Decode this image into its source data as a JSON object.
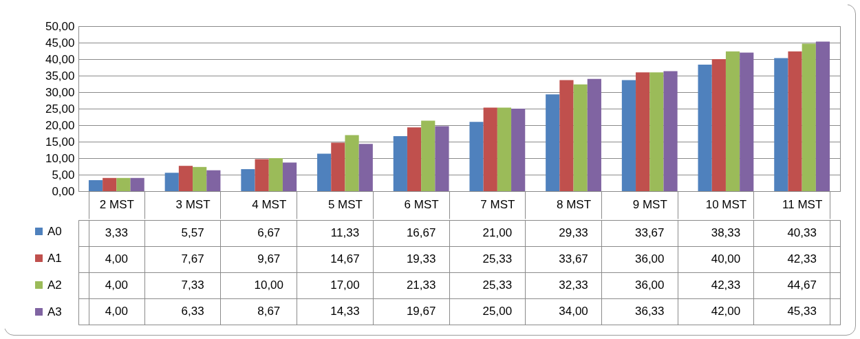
{
  "chart_data": {
    "type": "bar",
    "categories": [
      "2 MST",
      "3 MST",
      "4 MST",
      "5 MST",
      "6 MST",
      "7 MST",
      "8 MST",
      "9 MST",
      "10 MST",
      "11 MST"
    ],
    "series": [
      {
        "name": "A0",
        "color": "#4f81bd",
        "values": [
          3.33,
          5.57,
          6.67,
          11.33,
          16.67,
          21.0,
          29.33,
          33.67,
          38.33,
          40.33
        ],
        "value_labels": [
          "3,33",
          "5,57",
          "6,67",
          "11,33",
          "16,67",
          "21,00",
          "29,33",
          "33,67",
          "38,33",
          "40,33"
        ]
      },
      {
        "name": "A1",
        "color": "#c0504d",
        "values": [
          4.0,
          7.67,
          9.67,
          14.67,
          19.33,
          25.33,
          33.67,
          36.0,
          40.0,
          42.33
        ],
        "value_labels": [
          "4,00",
          "7,67",
          "9,67",
          "14,67",
          "19,33",
          "25,33",
          "33,67",
          "36,00",
          "40,00",
          "42,33"
        ]
      },
      {
        "name": "A2",
        "color": "#9bbb59",
        "values": [
          4.0,
          7.33,
          10.0,
          17.0,
          21.33,
          25.33,
          32.33,
          36.0,
          42.33,
          44.67
        ],
        "value_labels": [
          "4,00",
          "7,33",
          "10,00",
          "17,00",
          "21,33",
          "25,33",
          "32,33",
          "36,00",
          "42,33",
          "44,67"
        ]
      },
      {
        "name": "A3",
        "color": "#8064a2",
        "values": [
          4.0,
          6.33,
          8.67,
          14.33,
          19.67,
          25.0,
          34.0,
          36.33,
          42.0,
          45.33
        ],
        "value_labels": [
          "4,00",
          "6,33",
          "8,67",
          "14,33",
          "19,67",
          "25,00",
          "34,00",
          "36,33",
          "42,00",
          "45,33"
        ]
      }
    ],
    "ylim": [
      0,
      50
    ],
    "yticks": [
      {
        "value": 0,
        "label": "0,00"
      },
      {
        "value": 5,
        "label": "5,00"
      },
      {
        "value": 10,
        "label": "10,00"
      },
      {
        "value": 15,
        "label": "15,00"
      },
      {
        "value": 20,
        "label": "20,00"
      },
      {
        "value": 25,
        "label": "25,00"
      },
      {
        "value": 30,
        "label": "30,00"
      },
      {
        "value": 35,
        "label": "35,00"
      },
      {
        "value": 40,
        "label": "40,00"
      },
      {
        "value": 45,
        "label": "45,00"
      },
      {
        "value": 50,
        "label": "50,00"
      }
    ],
    "grid": "y",
    "legend": "bottom left"
  }
}
